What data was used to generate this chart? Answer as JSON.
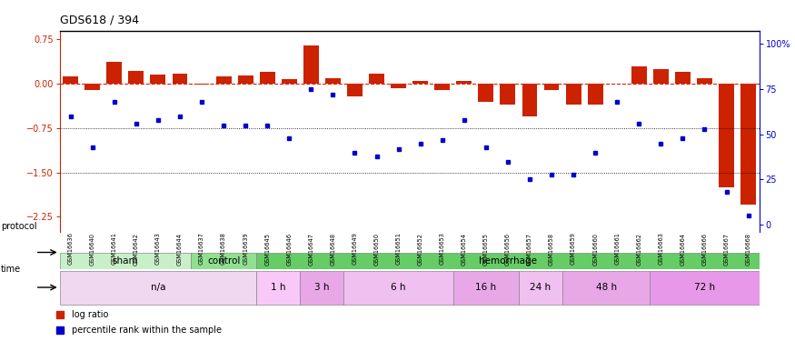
{
  "title": "GDS618 / 394",
  "samples": [
    "GSM16636",
    "GSM16640",
    "GSM16641",
    "GSM16642",
    "GSM16643",
    "GSM16644",
    "GSM16637",
    "GSM16638",
    "GSM16639",
    "GSM16645",
    "GSM16646",
    "GSM16647",
    "GSM16648",
    "GSM16649",
    "GSM16650",
    "GSM16651",
    "GSM16652",
    "GSM16653",
    "GSM16654",
    "GSM16655",
    "GSM16656",
    "GSM16657",
    "GSM16658",
    "GSM16659",
    "GSM16660",
    "GSM16661",
    "GSM16662",
    "GSM16663",
    "GSM16664",
    "GSM16666",
    "GSM16667",
    "GSM16668"
  ],
  "log_ratio": [
    0.12,
    -0.1,
    0.38,
    0.22,
    0.15,
    0.18,
    -0.02,
    0.12,
    0.14,
    0.2,
    0.08,
    0.65,
    0.1,
    -0.22,
    0.18,
    -0.08,
    0.05,
    -0.1,
    0.05,
    -0.3,
    -0.35,
    -0.55,
    -0.1,
    -0.35,
    -0.35,
    0.0,
    0.3,
    0.25,
    0.2,
    0.1,
    -1.75,
    -2.05
  ],
  "percentile": [
    60,
    43,
    68,
    56,
    58,
    60,
    68,
    55,
    55,
    55,
    48,
    75,
    72,
    40,
    38,
    42,
    45,
    47,
    58,
    43,
    35,
    25,
    28,
    28,
    40,
    68,
    56,
    45,
    48,
    53,
    18,
    5
  ],
  "protocol_groups": [
    {
      "label": "sham",
      "start": 0,
      "end": 6,
      "color": "#c8f0c8"
    },
    {
      "label": "control",
      "start": 6,
      "end": 9,
      "color": "#90e090"
    },
    {
      "label": "hemorrhage",
      "start": 9,
      "end": 32,
      "color": "#66cc66"
    }
  ],
  "time_groups": [
    {
      "label": "n/a",
      "start": 0,
      "end": 9,
      "color": "#f0d8f0"
    },
    {
      "label": "1 h",
      "start": 9,
      "end": 11,
      "color": "#f8c8f8"
    },
    {
      "label": "3 h",
      "start": 11,
      "end": 13,
      "color": "#e8a8e8"
    },
    {
      "label": "6 h",
      "start": 13,
      "end": 18,
      "color": "#f0c0f0"
    },
    {
      "label": "16 h",
      "start": 18,
      "end": 21,
      "color": "#e8a8e8"
    },
    {
      "label": "24 h",
      "start": 21,
      "end": 23,
      "color": "#f0c0f0"
    },
    {
      "label": "48 h",
      "start": 23,
      "end": 27,
      "color": "#e8a8e8"
    },
    {
      "label": "72 h",
      "start": 27,
      "end": 32,
      "color": "#e898e8"
    }
  ],
  "bar_color": "#cc2200",
  "dot_color": "#0000cc",
  "ylim_left": [
    -2.5,
    0.9
  ],
  "yticks_left": [
    0.75,
    0.0,
    -0.75,
    -1.5,
    -2.25
  ],
  "ylim_right": [
    -3.57,
    107
  ],
  "yticks_right": [
    0,
    25,
    50,
    75,
    100
  ],
  "yticklabels_right": [
    "0",
    "25",
    "50",
    "75",
    "100%"
  ],
  "hlines": [
    -0.75,
    -1.5
  ],
  "zero_line_color": "#dd2200",
  "background_color": "#ffffff"
}
